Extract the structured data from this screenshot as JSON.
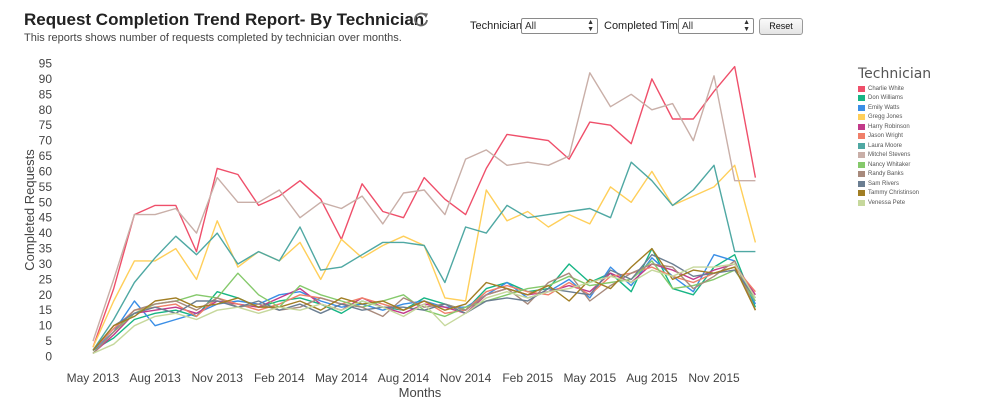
{
  "header": {
    "title": "Request Completion Trend Report- By Technician",
    "subtitle": "This reports shows number of requests completed by technician over months.",
    "refresh_icon": "refresh-icon"
  },
  "filters": {
    "technician_label": "Technician:",
    "technician_value": "All",
    "completed_time_label": "Completed Time:",
    "completed_time_value": "All",
    "reset_label": "Reset"
  },
  "chart_data": {
    "type": "line",
    "title": "",
    "xlabel": "Months",
    "ylabel": "Completed Requests",
    "ylim": [
      0,
      95
    ],
    "yticks": [
      0,
      5,
      10,
      15,
      20,
      25,
      30,
      35,
      40,
      45,
      50,
      55,
      60,
      65,
      70,
      75,
      80,
      85,
      90,
      95
    ],
    "x": [
      "May 2013",
      "Jun 2013",
      "Jul 2013",
      "Aug 2013",
      "Sep 2013",
      "Oct 2013",
      "Nov 2013",
      "Dec 2013",
      "Jan 2014",
      "Feb 2014",
      "Mar 2014",
      "Apr 2014",
      "May 2014",
      "Jun 2014",
      "Jul 2014",
      "Aug 2014",
      "Sep 2014",
      "Oct 2014",
      "Nov 2014",
      "Dec 2014",
      "Jan 2015",
      "Feb 2015",
      "Mar 2015",
      "Apr 2015",
      "May 2015",
      "Jun 2015",
      "Jul 2015",
      "Aug 2015",
      "Sep 2015",
      "Oct 2015",
      "Nov 2015",
      "Dec 2015",
      "Jan 2016"
    ],
    "xticks": [
      "May 2013",
      "Aug 2013",
      "Nov 2013",
      "Feb 2014",
      "May 2014",
      "Aug 2014",
      "Nov 2014",
      "Feb 2015",
      "May 2015",
      "Aug 2015",
      "Nov 2015"
    ],
    "legend_title": "Technician",
    "legend_position": "right",
    "grid": false,
    "series": [
      {
        "name": "Charlie White",
        "color": "#ef4f6a",
        "values": [
          3,
          22,
          46,
          49,
          49,
          34,
          61,
          59,
          49,
          52,
          57,
          51,
          38,
          56,
          47,
          45,
          58,
          51,
          46,
          61,
          72,
          71,
          70,
          64,
          76,
          75,
          69,
          90,
          77,
          77,
          86,
          94,
          58
        ]
      },
      {
        "name": "Don Williams",
        "color": "#17b585",
        "values": [
          2,
          6,
          12,
          14,
          15,
          13,
          21,
          19,
          16,
          18,
          19,
          17,
          14,
          18,
          16,
          15,
          19,
          17,
          15,
          22,
          24,
          21,
          22,
          30,
          24,
          27,
          21,
          35,
          22,
          20,
          29,
          33,
          16
        ]
      },
      {
        "name": "Emily Watts",
        "color": "#3a8ee6",
        "values": [
          2,
          8,
          18,
          10,
          12,
          14,
          17,
          18,
          17,
          20,
          21,
          18,
          16,
          17,
          15,
          17,
          18,
          16,
          16,
          20,
          24,
          19,
          21,
          25,
          19,
          29,
          23,
          32,
          26,
          21,
          33,
          31,
          17
        ]
      },
      {
        "name": "Gregg Jones",
        "color": "#ffcf5a",
        "values": [
          3,
          18,
          31,
          31,
          35,
          25,
          44,
          29,
          34,
          31,
          37,
          25,
          38,
          32,
          36,
          39,
          36,
          19,
          18,
          54,
          44,
          47,
          42,
          46,
          43,
          55,
          50,
          60,
          49,
          52,
          55,
          62,
          37
        ]
      },
      {
        "name": "Harry Robinson",
        "color": "#c23a8a",
        "values": [
          1,
          7,
          14,
          15,
          16,
          14,
          18,
          17,
          16,
          19,
          22,
          17,
          15,
          19,
          16,
          14,
          17,
          16,
          14,
          20,
          22,
          20,
          21,
          23,
          21,
          27,
          24,
          30,
          28,
          25,
          28,
          30,
          20
        ]
      },
      {
        "name": "Jason Wright",
        "color": "#f07f69",
        "values": [
          2,
          9,
          15,
          16,
          17,
          13,
          19,
          17,
          15,
          17,
          20,
          19,
          17,
          19,
          17,
          15,
          18,
          14,
          15,
          21,
          23,
          21,
          20,
          24,
          20,
          26,
          27,
          29,
          26,
          24,
          27,
          29,
          21
        ]
      },
      {
        "name": "Laura Moore",
        "color": "#4fa8a3",
        "values": [
          2,
          12,
          24,
          32,
          39,
          33,
          40,
          30,
          34,
          31,
          42,
          28,
          29,
          33,
          37,
          37,
          36,
          24,
          42,
          40,
          49,
          45,
          46,
          47,
          48,
          45,
          63,
          57,
          49,
          54,
          62,
          34,
          34
        ]
      },
      {
        "name": "Mitchel Stevens",
        "color": "#c9afa8",
        "values": [
          5,
          25,
          46,
          46,
          48,
          40,
          58,
          50,
          50,
          54,
          45,
          50,
          48,
          52,
          43,
          53,
          54,
          46,
          64,
          67,
          62,
          63,
          62,
          65,
          92,
          81,
          85,
          80,
          82,
          70,
          91,
          57,
          57
        ]
      },
      {
        "name": "Nancy Whitaker",
        "color": "#85c96b",
        "values": [
          1,
          8,
          14,
          17,
          18,
          20,
          19,
          27,
          20,
          16,
          23,
          20,
          18,
          16,
          18,
          20,
          15,
          13,
          16,
          18,
          20,
          22,
          23,
          26,
          23,
          24,
          25,
          31,
          22,
          23,
          25,
          28,
          18
        ]
      },
      {
        "name": "Randy Banks",
        "color": "#a88a7c",
        "values": [
          1,
          8,
          15,
          17,
          18,
          15,
          19,
          16,
          17,
          15,
          16,
          19,
          17,
          16,
          13,
          19,
          16,
          17,
          15,
          20,
          22,
          17,
          24,
          27,
          18,
          23,
          27,
          30,
          29,
          22,
          26,
          31,
          15
        ]
      },
      {
        "name": "Sam Rivers",
        "color": "#6b7e92",
        "values": [
          2,
          10,
          14,
          16,
          14,
          18,
          18,
          16,
          18,
          15,
          17,
          14,
          17,
          15,
          16,
          16,
          15,
          17,
          14,
          18,
          19,
          18,
          22,
          21,
          20,
          28,
          25,
          33,
          30,
          26,
          27,
          28,
          19
        ]
      },
      {
        "name": "Tammy Christinson",
        "color": "#a17e24",
        "values": [
          2,
          10,
          13,
          18,
          19,
          16,
          17,
          19,
          16,
          16,
          18,
          15,
          19,
          17,
          18,
          15,
          18,
          15,
          17,
          24,
          22,
          20,
          23,
          18,
          25,
          22,
          29,
          35,
          25,
          28,
          27,
          29,
          15
        ]
      },
      {
        "name": "Venessa Pete",
        "color": "#c6d89c",
        "values": [
          1,
          4,
          10,
          13,
          14,
          12,
          15,
          16,
          14,
          16,
          15,
          17,
          15,
          18,
          16,
          13,
          17,
          10,
          14,
          19,
          21,
          19,
          21,
          22,
          24,
          26,
          24,
          28,
          26,
          29,
          29,
          30,
          19
        ]
      }
    ]
  }
}
